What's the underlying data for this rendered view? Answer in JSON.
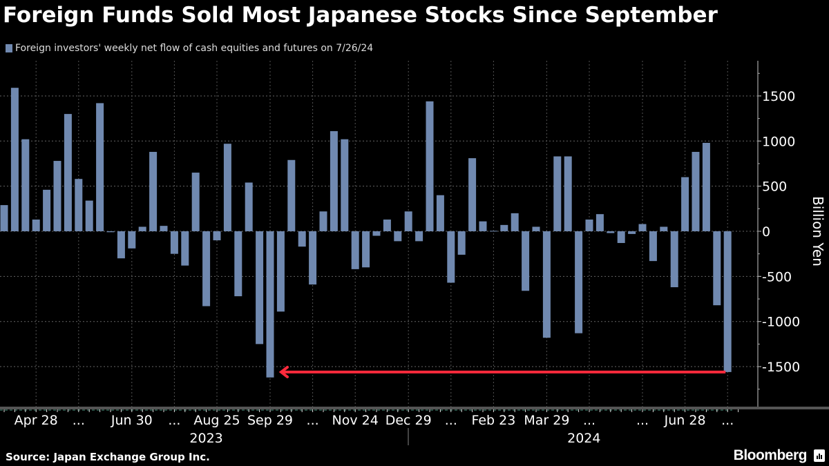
{
  "chart_data": {
    "type": "bar",
    "title": "Foreign Funds Sold Most Japanese Stocks Since September",
    "legend": "Foreign investors' weekly net flow of cash equities and futures on 7/26/24",
    "ylabel": "Billion Yen",
    "ylim": [
      -1900,
      1900
    ],
    "yticks": [
      1500,
      1000,
      500,
      0,
      -500,
      -1000,
      -1500
    ],
    "y_axis_side": "right",
    "grid": true,
    "bar_color": "#7089b0",
    "annotation_color": "#ff2a3c",
    "annotation": {
      "type": "arrow",
      "from": "2024-07-26",
      "to": "2023-09-29",
      "level": -1560
    },
    "first_week": "2023-04-07",
    "values": [
      290,
      1590,
      1020,
      130,
      460,
      780,
      1300,
      580,
      340,
      1420,
      -10,
      -300,
      -190,
      50,
      880,
      60,
      -250,
      -380,
      650,
      -830,
      -100,
      970,
      -720,
      540,
      -1250,
      -1620,
      -890,
      790,
      -170,
      -590,
      220,
      1110,
      1020,
      -420,
      -400,
      -50,
      130,
      -110,
      220,
      -110,
      1440,
      400,
      -570,
      -260,
      810,
      110,
      5,
      70,
      200,
      -660,
      50,
      -1180,
      830,
      830,
      -1130,
      130,
      190,
      -20,
      -130,
      -30,
      80,
      -330,
      50,
      -620,
      600,
      880,
      980,
      -820,
      -1560
    ],
    "xticks": [
      {
        "label": "Apr 28",
        "week": 3
      },
      {
        "label": "...",
        "week": 7
      },
      {
        "label": "Jun 30",
        "week": 12
      },
      {
        "label": "...",
        "week": 16
      },
      {
        "label": "Aug 25",
        "week": 20
      },
      {
        "label": "Sep 29",
        "week": 25
      },
      {
        "label": "...",
        "week": 29
      },
      {
        "label": "Nov 24",
        "week": 33
      },
      {
        "label": "Dec 29",
        "week": 38
      },
      {
        "label": "...",
        "week": 42
      },
      {
        "label": "Feb 23",
        "week": 46
      },
      {
        "label": "Mar 29",
        "week": 51
      },
      {
        "label": "...",
        "week": 55
      },
      {
        "label": "...",
        "week": 60
      },
      {
        "label": "Jun 28",
        "week": 64
      },
      {
        "label": "...",
        "week": 68
      }
    ],
    "years": [
      {
        "label": "2023",
        "center_week": 19
      },
      {
        "label": "2024",
        "center_week": 54.5
      }
    ]
  },
  "footer": {
    "source": "Source: Japan Exchange Group Inc.",
    "brand": "Bloomberg"
  }
}
